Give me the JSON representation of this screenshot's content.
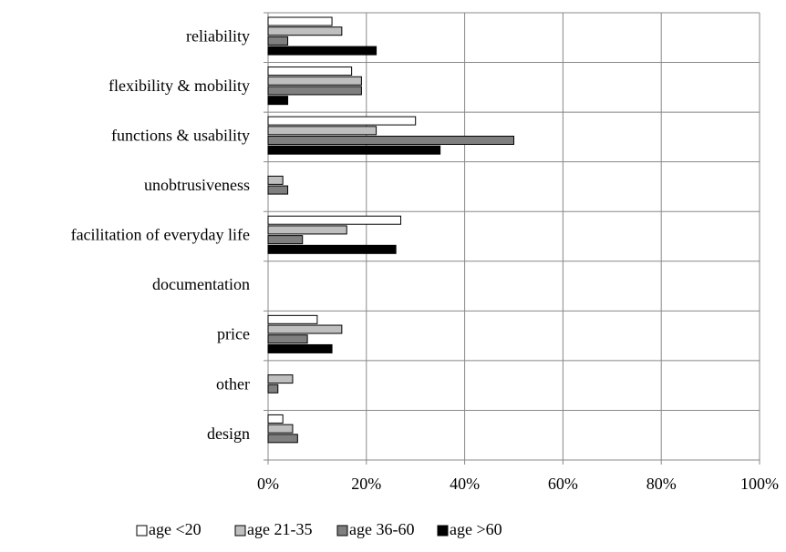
{
  "chart_data": {
    "type": "bar",
    "orientation": "horizontal",
    "categories": [
      "reliability",
      "flexibility & mobility",
      "functions & usability",
      "unobtrusiveness",
      "facilitation of everyday life",
      "documentation",
      "price",
      "other",
      "design"
    ],
    "series": [
      {
        "name": "age <20",
        "color": "#ffffff",
        "values": [
          13,
          17,
          30,
          0,
          27,
          0,
          10,
          0,
          3
        ]
      },
      {
        "name": "age 21-35",
        "color": "#bfbfbf",
        "values": [
          15,
          19,
          22,
          3,
          16,
          0,
          15,
          5,
          5
        ]
      },
      {
        "name": "age 36-60",
        "color": "#7f7f7f",
        "values": [
          4,
          19,
          50,
          4,
          7,
          0,
          8,
          2,
          6
        ]
      },
      {
        "name": "age >60",
        "color": "#000000",
        "values": [
          22,
          4,
          35,
          0,
          26,
          0,
          13,
          0,
          0
        ]
      }
    ],
    "xlim": [
      0,
      100
    ],
    "xticks": [
      {
        "value": 0,
        "label": "0%"
      },
      {
        "value": 20,
        "label": "20%"
      },
      {
        "value": 40,
        "label": "40%"
      },
      {
        "value": 60,
        "label": "60%"
      },
      {
        "value": 80,
        "label": "80%"
      },
      {
        "value": 100,
        "label": "100%"
      }
    ],
    "grid": true,
    "legend": "bottom"
  }
}
